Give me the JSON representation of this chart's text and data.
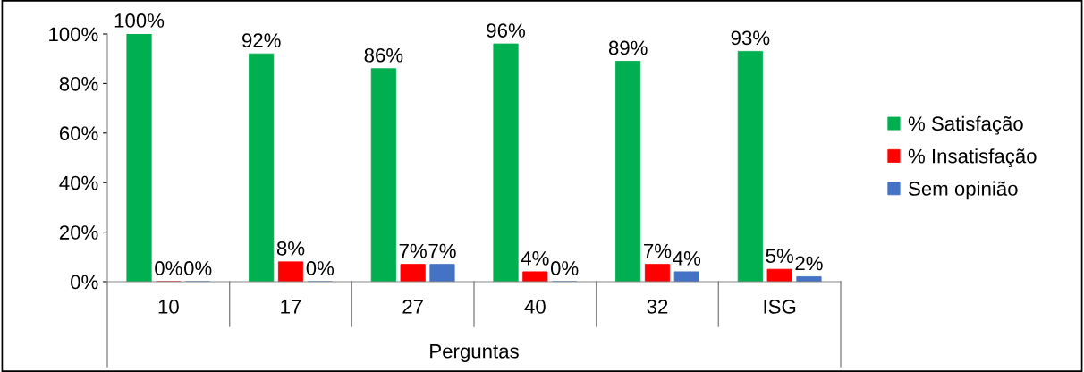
{
  "chart_data": {
    "type": "bar",
    "xlabel": "Perguntas",
    "categories": [
      "10",
      "17",
      "27",
      "40",
      "32",
      "ISG"
    ],
    "series": [
      {
        "name": "% Satisfação",
        "color": "#00b050",
        "values": [
          100,
          92,
          86,
          96,
          89,
          93
        ],
        "value_labels": [
          "100%",
          "92%",
          "86%",
          "96%",
          "89%",
          "93%"
        ]
      },
      {
        "name": "% Insatisfação",
        "color": "#ff0000",
        "values": [
          0,
          8,
          7,
          4,
          7,
          5
        ],
        "value_labels": [
          "0%",
          "8%",
          "7%",
          "4%",
          "7%",
          "5%"
        ]
      },
      {
        "name": "Sem opinião",
        "color": "#4472c4",
        "values": [
          0,
          0,
          7,
          0,
          4,
          2
        ],
        "value_labels": [
          "0%",
          "0%",
          "7%",
          "0%",
          "4%",
          "2%"
        ]
      }
    ],
    "ylim": [
      0,
      100
    ],
    "yticks": [
      {
        "value": 0,
        "label": "0%"
      },
      {
        "value": 20,
        "label": "20%"
      },
      {
        "value": 40,
        "label": "40%"
      },
      {
        "value": 60,
        "label": "60%"
      },
      {
        "value": 80,
        "label": "80%"
      },
      {
        "value": 100,
        "label": "100%"
      }
    ],
    "data_labels": true,
    "grid": false,
    "legend": "right"
  }
}
